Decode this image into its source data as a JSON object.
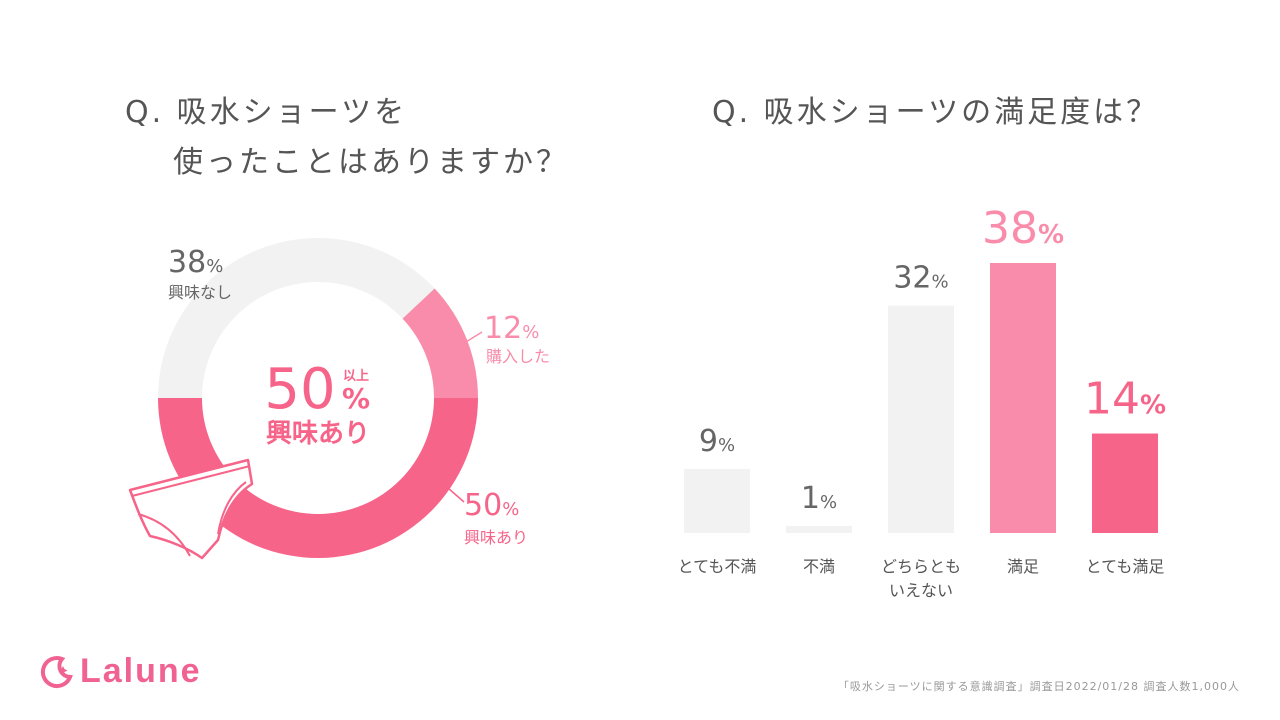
{
  "left_question": {
    "line1": "Q. 吸水ショーツを",
    "line2": "使ったことはありますか？"
  },
  "right_question": "Q. 吸水ショーツの満足度は？",
  "colors": {
    "pink_dark": "#f76489",
    "pink_mid": "#f98cab",
    "gray": "#f2f2f2",
    "label_gray": "#555555"
  },
  "donut": {
    "center_value": "50",
    "center_unit": "%",
    "center_prefix": "以上",
    "center_label": "興味あり",
    "segments": [
      {
        "key": "none",
        "value": 38,
        "value_text": "38",
        "label": "興味なし"
      },
      {
        "key": "bought",
        "value": 12,
        "value_text": "12",
        "label": "購入した"
      },
      {
        "key": "interest",
        "value": 50,
        "value_text": "50",
        "label": "興味あり"
      }
    ],
    "percent_sign": "%"
  },
  "chart_data": [
    {
      "type": "pie",
      "title": "Q. 吸水ショーツを使ったことはありますか？",
      "categories": [
        "興味なし",
        "購入した",
        "興味あり"
      ],
      "values": [
        38,
        12,
        50
      ],
      "unit": "%"
    },
    {
      "type": "bar",
      "title": "Q. 吸水ショーツの満足度は？",
      "categories": [
        "とても不満",
        "不満",
        "どちらともいえない",
        "満足",
        "とても満足"
      ],
      "values": [
        9,
        1,
        32,
        38,
        14
      ],
      "unit": "%",
      "ylim": [
        0,
        38
      ]
    }
  ],
  "bars": [
    {
      "label_lines": [
        "とても不満"
      ],
      "value_text": "9"
    },
    {
      "label_lines": [
        "不満"
      ],
      "value_text": "1"
    },
    {
      "label_lines": [
        "どちらとも",
        "いえない"
      ],
      "value_text": "32"
    },
    {
      "label_lines": [
        "満足"
      ],
      "value_text": "38"
    },
    {
      "label_lines": [
        "とても満足"
      ],
      "value_text": "14"
    }
  ],
  "logo": {
    "text": "Lalune",
    "icon": "moon-star-icon"
  },
  "footnote": "「吸水ショーツに関する意識調査」調査日2022/01/28 調査人数1,000人"
}
